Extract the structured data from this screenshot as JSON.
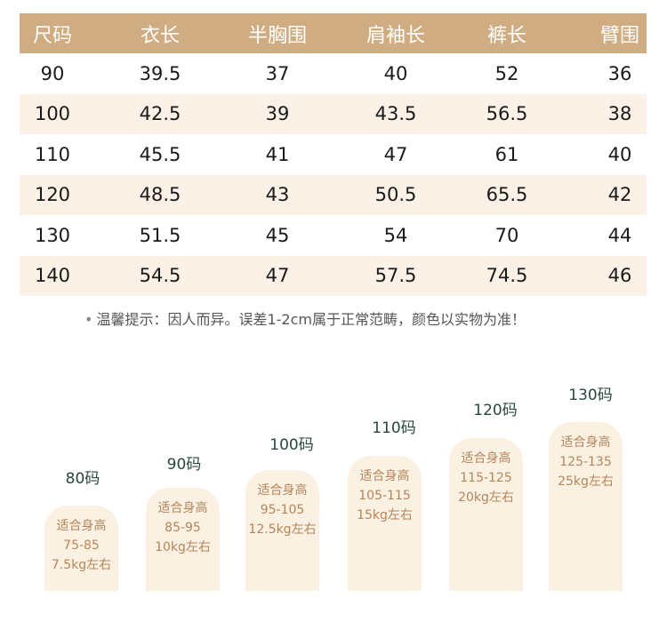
{
  "table": {
    "headers": [
      "尺码",
      "衣长",
      "半胸围",
      "肩袖长",
      "裤长",
      "臂围"
    ],
    "rows": [
      [
        "90",
        "39.5",
        "37",
        "40",
        "52",
        "36"
      ],
      [
        "100",
        "42.5",
        "39",
        "43.5",
        "56.5",
        "38"
      ],
      [
        "110",
        "45.5",
        "41",
        "47",
        "61",
        "40"
      ],
      [
        "120",
        "48.5",
        "43",
        "50.5",
        "65.5",
        "42"
      ],
      [
        "130",
        "51.5",
        "45",
        "54",
        "70",
        "44"
      ],
      [
        "140",
        "54.5",
        "47",
        "57.5",
        "74.5",
        "46"
      ]
    ]
  },
  "note": "温馨提示：因人而异。误差1-2cm属于正常范畴，颜色以实物为准！",
  "size_cards": [
    {
      "size": "80码",
      "label": "适合身高",
      "height": "75-85",
      "weight": "7.5kg左右"
    },
    {
      "size": "90码",
      "label": "适合身高",
      "height": "85-95",
      "weight": "10kg左右"
    },
    {
      "size": "100码",
      "label": "适合身高",
      "height": "95-105",
      "weight": "12.5kg左右"
    },
    {
      "size": "110码",
      "label": "适合身高",
      "height": "105-115",
      "weight": "15kg左右"
    },
    {
      "size": "120码",
      "label": "适合身高",
      "height": "115-125",
      "weight": "20kg左右"
    },
    {
      "size": "130码",
      "label": "适合身高",
      "height": "125-135",
      "weight": "25kg左右"
    }
  ],
  "colors": {
    "header": "#cfac82",
    "row_alt": "#fbf1e6",
    "card": "#fbf1e3",
    "card_text": "#b5855a",
    "size_text": "#27473d"
  }
}
